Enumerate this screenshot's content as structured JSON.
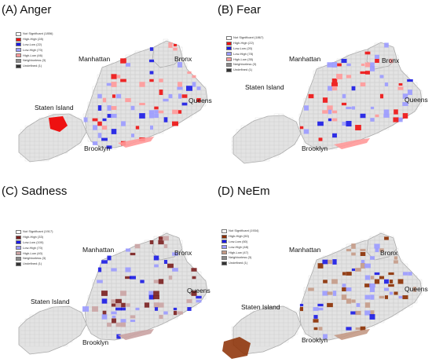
{
  "panels": [
    {
      "title": "(A) Anger",
      "legend": [
        "Not Significant (1856)",
        "High-High (28)",
        "Low-Low (22)",
        "Low-High (70)",
        "High-Low (46)",
        "Neighborless (3)",
        "Undefined (1)"
      ],
      "boroughs": [
        "Manhattan",
        "Bronx",
        "Queens",
        "Staten Island",
        "Brooklyn"
      ]
    },
    {
      "title": "(B) Fear",
      "legend": [
        "Not Significant (1867)",
        "High-High (22)",
        "Low-Low (20)",
        "Low-High (78)",
        "High-Low (35)",
        "Neighborless (3)",
        "Undefined (1)"
      ],
      "boroughs": [
        "Manhattan",
        "Bronx",
        "Queens",
        "Staten Island",
        "Brooklyn"
      ]
    },
    {
      "title": "(C) Sadness",
      "legend": [
        "Not Significant (1917)",
        "High-High (33)",
        "Low-Low (100)",
        "Low-High (70)",
        "High-Low (40)",
        "Neighborless (3)",
        "Undefined (1)"
      ],
      "boroughs": [
        "Manhattan",
        "Bronx",
        "Queens",
        "Staten Island",
        "Brooklyn"
      ]
    },
    {
      "title": "(D) NeEm",
      "legend": [
        "Not Significant (1934)",
        "High-High (50)",
        "Low-Low (60)",
        "Low-High (48)",
        "High-Low (47)",
        "Neighborless (3)",
        "Undefined (1)"
      ],
      "boroughs": [
        "Manhattan",
        "Bronx",
        "Queens",
        "Staten Island",
        "Brooklyn"
      ]
    }
  ],
  "legend_colors": {
    "anger_fear": [
      "#ffffff",
      "#ee1111",
      "#1a1ae6",
      "#9a9aff",
      "#ff9999",
      "#8a8a8a",
      "#333333"
    ],
    "sadness": [
      "#ffffff",
      "#7a1f1f",
      "#1a1ae6",
      "#9a9aff",
      "#caa3a3",
      "#8a8a8a",
      "#333333"
    ],
    "neem": [
      "#ffffff",
      "#8b2d00",
      "#1a1ae6",
      "#9a9aff",
      "#c49a86",
      "#8a8a8a",
      "#333333"
    ]
  },
  "map_colors": {
    "land": "#e3e3e3",
    "border": "#a9a9a9"
  }
}
